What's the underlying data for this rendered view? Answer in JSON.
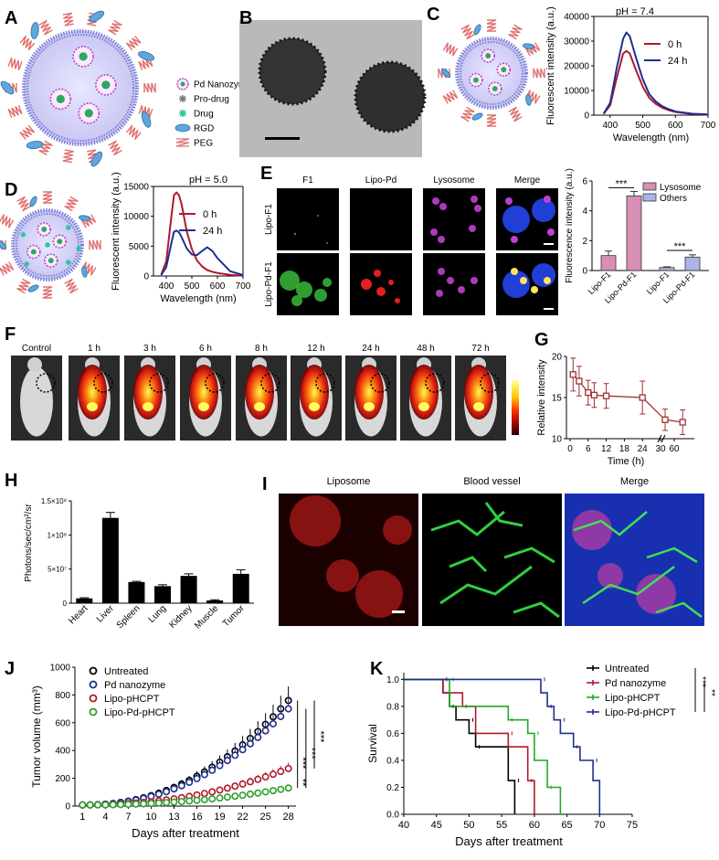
{
  "panel_letters": [
    "A",
    "B",
    "C",
    "D",
    "E",
    "F",
    "G",
    "H",
    "I",
    "J",
    "K"
  ],
  "panelA": {
    "legend": [
      {
        "name": "Pd Nanozyme",
        "icon": "pd-nanozyme-icon"
      },
      {
        "name": "Pro-drug",
        "icon": "prodrug-icon"
      },
      {
        "name": "Drug",
        "icon": "drug-icon"
      },
      {
        "name": "RGD",
        "icon": "rgd-icon"
      },
      {
        "name": "PEG",
        "icon": "peg-icon"
      }
    ]
  },
  "panelE": {
    "col_headers": [
      "F1",
      "Lipo-Pd",
      "Lysosome",
      "Merge"
    ],
    "row_headers": [
      "Lipo-F1",
      "Lipo-Pd-F1"
    ]
  },
  "panelF": {
    "timepoints": [
      "Control",
      "1 h",
      "3 h",
      "6 h",
      "8 h",
      "12 h",
      "24 h",
      "48 h",
      "72 h"
    ]
  },
  "panelI": {
    "headers": [
      "Liposome",
      "Blood vessel",
      "Merge"
    ]
  },
  "colors": {
    "red_series": "#b2182b",
    "blue_series": "#1f2f8f",
    "pink_bar": "#d88fb5",
    "lightblue_bar": "#aab4e6",
    "maroon": "#a0302e",
    "green": "#2ca02c"
  },
  "chart_data": [
    {
      "id": "C",
      "type": "line",
      "title": "pH = 7.4",
      "xlabel": "Wavelength (nm)",
      "ylabel": "Fluorescent intensity (a.u.)",
      "xlim": [
        350,
        700
      ],
      "ylim": [
        0,
        40000
      ],
      "xticks": [
        "400",
        "500",
        "600",
        "700"
      ],
      "yticks": [
        "0",
        "10000",
        "20000",
        "30000",
        "40000"
      ],
      "x": [
        380,
        400,
        420,
        440,
        450,
        460,
        480,
        500,
        520,
        540,
        560,
        580,
        600,
        650,
        700
      ],
      "series": [
        {
          "name": "0 h",
          "color": "#b2182b",
          "values": [
            500,
            4000,
            15000,
            25000,
            26000,
            25000,
            18000,
            11500,
            7000,
            4500,
            3000,
            2000,
            1300,
            500,
            200
          ]
        },
        {
          "name": "24 h",
          "color": "#1f2f8f",
          "values": [
            600,
            5000,
            19000,
            31000,
            33500,
            32000,
            23000,
            14500,
            8500,
            5500,
            3600,
            2400,
            1500,
            600,
            250
          ]
        }
      ],
      "legend": "right"
    },
    {
      "id": "D",
      "type": "line",
      "title": "pH = 5.0",
      "xlabel": "Wavelength (nm)",
      "ylabel": "Fluorescent intensity (a.u.)",
      "xlim": [
        350,
        700
      ],
      "ylim": [
        0,
        15000
      ],
      "xticks": [
        "400",
        "500",
        "600",
        "700"
      ],
      "yticks": [
        "0",
        "5000",
        "10000",
        "15000"
      ],
      "x": [
        380,
        400,
        420,
        430,
        440,
        450,
        460,
        480,
        500,
        520,
        540,
        560,
        580,
        600,
        650,
        700
      ],
      "series": [
        {
          "name": "0 h",
          "color": "#b2182b",
          "values": [
            200,
            2500,
            10000,
            13500,
            14000,
            13500,
            12000,
            7500,
            4500,
            2600,
            1600,
            1000,
            700,
            500,
            200,
            50
          ]
        },
        {
          "name": "24 h",
          "color": "#1f2f8f",
          "values": [
            150,
            1500,
            5500,
            7400,
            7600,
            7300,
            6500,
            4600,
            3600,
            3500,
            4200,
            4800,
            4200,
            3000,
            800,
            150
          ]
        }
      ],
      "legend": "right"
    },
    {
      "id": "E",
      "type": "bar",
      "ylabel": "Fluorescence intensity (a.u.)",
      "ylim": [
        0,
        6
      ],
      "yticks": [
        "0",
        "2",
        "4",
        "6"
      ],
      "categories": [
        "Lipo-F1",
        "Lipo-Pd-F1",
        "Lipo-F1",
        "Lipo-Pd-F1"
      ],
      "series": [
        {
          "name": "Lysosome",
          "color": "#d88fb5",
          "values": [
            1.0,
            5.0,
            null,
            null
          ],
          "errors": [
            0.3,
            0.3,
            null,
            null
          ]
        },
        {
          "name": "Others",
          "color": "#aab4e6",
          "values": [
            null,
            null,
            0.2,
            0.9
          ],
          "errors": [
            null,
            null,
            0.05,
            0.15
          ]
        }
      ],
      "significance": [
        "***",
        "***"
      ],
      "legend": "top-right"
    },
    {
      "id": "G",
      "type": "line",
      "xlabel": "Time (h)",
      "ylabel": "Relative intensity",
      "ylim": [
        10,
        20
      ],
      "yticks": [
        "10",
        "15",
        "20"
      ],
      "xticks": [
        "0",
        "6",
        "12",
        "18",
        "24",
        "30",
        "60"
      ],
      "x": [
        1,
        3,
        6,
        8,
        12,
        24,
        48,
        72
      ],
      "series": [
        {
          "name": "",
          "color": "#a0302e",
          "values": [
            17.8,
            17.0,
            15.6,
            15.3,
            15.2,
            15.0,
            12.3,
            12.0
          ],
          "errors": [
            2.0,
            1.8,
            1.5,
            1.5,
            1.5,
            2.0,
            1.3,
            1.5
          ]
        }
      ]
    },
    {
      "id": "H",
      "type": "bar",
      "ylabel": "Photons/sec/cm²/sr",
      "ylim": [
        0,
        150000000
      ],
      "yticks": [
        "0",
        "5×10⁷",
        "1×10⁸",
        "1.5×10⁸"
      ],
      "categories": [
        "Heart",
        "Liver",
        "Spleen",
        "Lung",
        "Kidney",
        "Muscle",
        "Tumor"
      ],
      "values": [
        7000000,
        125000000,
        31000000,
        25000000,
        40000000,
        4000000,
        43000000
      ],
      "errors": [
        1000000,
        8000000,
        1000000,
        2000000,
        3000000,
        1000000,
        6000000
      ]
    },
    {
      "id": "J",
      "type": "scatter",
      "xlabel": "Days after treatment",
      "ylabel": "Tumor volume (mm³)",
      "xlim": [
        0,
        29
      ],
      "ylim": [
        0,
        1000
      ],
      "xticks": [
        "1",
        "4",
        "7",
        "10",
        "13",
        "16",
        "19",
        "22",
        "25",
        "28"
      ],
      "yticks": [
        "0",
        "200",
        "400",
        "600",
        "800",
        "1000"
      ],
      "series": [
        {
          "name": "Untreated",
          "color": "#000000",
          "start": 8,
          "end": 760
        },
        {
          "name": "Pd nanozyme",
          "color": "#1f2f8f",
          "start": 8,
          "end": 700
        },
        {
          "name": "Lipo-pHCPT",
          "color": "#b2182b",
          "start": 8,
          "end": 270
        },
        {
          "name": "Lipo-Pd-pHCPT",
          "color": "#2ca02c",
          "start": 8,
          "end": 130
        }
      ],
      "significance": [
        "***",
        "***",
        "***",
        "**"
      ],
      "legend": "top-left"
    },
    {
      "id": "K",
      "type": "line",
      "xlabel": "Days after treatment",
      "ylabel": "Survival",
      "xlim": [
        40,
        75
      ],
      "ylim": [
        0,
        1.05
      ],
      "xticks": [
        "40",
        "45",
        "50",
        "55",
        "60",
        "65",
        "70",
        "75"
      ],
      "yticks": [
        "0.0",
        "0.2",
        "0.4",
        "0.6",
        "0.8",
        "1.0"
      ],
      "series": [
        {
          "name": "Untreated",
          "color": "#000000",
          "steps": [
            [
              40,
              1.0
            ],
            [
              46,
              1.0
            ],
            [
              46,
              0.9
            ],
            [
              47,
              0.9
            ],
            [
              47,
              0.8
            ],
            [
              48,
              0.8
            ],
            [
              48,
              0.7
            ],
            [
              50,
              0.7
            ],
            [
              50,
              0.6
            ],
            [
              51,
              0.6
            ],
            [
              51,
              0.5
            ],
            [
              56,
              0.5
            ],
            [
              56,
              0.25
            ],
            [
              57,
              0.25
            ],
            [
              57,
              0
            ]
          ]
        },
        {
          "name": "Pd nanozyme",
          "color": "#b2182b",
          "steps": [
            [
              40,
              1.0
            ],
            [
              46,
              1.0
            ],
            [
              46,
              0.9
            ],
            [
              49,
              0.9
            ],
            [
              49,
              0.8
            ],
            [
              51,
              0.8
            ],
            [
              51,
              0.6
            ],
            [
              56,
              0.6
            ],
            [
              56,
              0.5
            ],
            [
              59,
              0.5
            ],
            [
              59,
              0.25
            ],
            [
              60,
              0.25
            ],
            [
              60,
              0
            ]
          ]
        },
        {
          "name": "Lipo-pHCPT",
          "color": "#22aa22",
          "steps": [
            [
              40,
              1.0
            ],
            [
              47,
              1.0
            ],
            [
              47,
              0.8
            ],
            [
              56,
              0.8
            ],
            [
              56,
              0.7
            ],
            [
              59,
              0.7
            ],
            [
              59,
              0.6
            ],
            [
              60,
              0.6
            ],
            [
              60,
              0.4
            ],
            [
              62,
              0.4
            ],
            [
              62,
              0.2
            ],
            [
              64,
              0.2
            ],
            [
              64,
              0
            ]
          ]
        },
        {
          "name": "Lipo-Pd-pHCPT",
          "color": "#1f2f8f",
          "steps": [
            [
              40,
              1.0
            ],
            [
              61,
              1.0
            ],
            [
              61,
              0.9
            ],
            [
              62,
              0.9
            ],
            [
              62,
              0.8
            ],
            [
              63,
              0.8
            ],
            [
              63,
              0.7
            ],
            [
              64,
              0.7
            ],
            [
              64,
              0.6
            ],
            [
              66,
              0.6
            ],
            [
              66,
              0.5
            ],
            [
              67,
              0.5
            ],
            [
              67,
              0.4
            ],
            [
              69,
              0.4
            ],
            [
              69,
              0.25
            ],
            [
              70,
              0.25
            ],
            [
              70,
              0
            ]
          ]
        }
      ],
      "significance": [
        "***",
        "**"
      ],
      "legend": "top-right"
    }
  ]
}
